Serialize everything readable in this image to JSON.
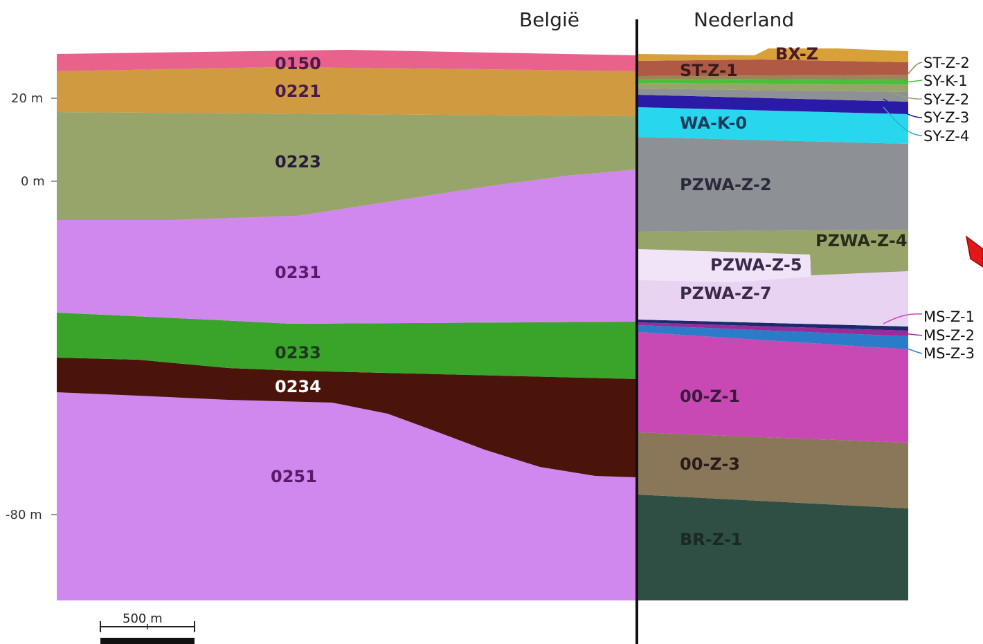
{
  "countries": {
    "left": "België",
    "right": "Nederland"
  },
  "axis": {
    "y20": "20 m",
    "y0": "0 m",
    "y80": "-80 m"
  },
  "scale_bar": "500 m",
  "belgium_units": [
    "0150",
    "0221",
    "0223",
    "0231",
    "0233",
    "0234",
    "0251"
  ],
  "netherlands_units": {
    "bxz": "BX-Z",
    "stz1": "ST-Z-1",
    "wak0": "WA-K-0",
    "pzwaz2": "PZWA-Z-2",
    "pzwaz4": "PZWA-Z-4",
    "pzwaz5": "PZWA-Z-5",
    "pzwaz7": "PZWA-Z-7",
    "ooz1": "00-Z-1",
    "ooz3": "00-Z-3",
    "brz1": "BR-Z-1"
  },
  "side_labels": [
    "ST-Z-2",
    "SY-K-1",
    "SY-Z-2",
    "SY-Z-3",
    "SY-Z-4",
    "MS-Z-1",
    "MS-Z-2",
    "MS-Z-3"
  ],
  "colors": {
    "0150": "#e8628c",
    "0221": "#cf9a40",
    "0223": "#97a56b",
    "0231": "#d088ee",
    "0233": "#3aa42a",
    "0234": "#4a140a",
    "0251": "#d088ee",
    "bxz": "#d8a038",
    "stz1": "#b05a45",
    "pzwaz2": "#8d9094",
    "pzwaz7": "#e8d4f2",
    "wak0": "#28d6ee",
    "ooz1": "#c848b4",
    "ooz3": "#8a7658",
    "brz1": "#2f4f44",
    "ms": "#2a7bc8",
    "arrow": "#e01818"
  }
}
